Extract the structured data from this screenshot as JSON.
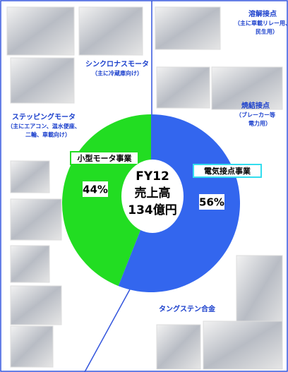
{
  "chart_data": {
    "type": "pie",
    "categories": [
      "電気接点事業",
      "小型モータ事業"
    ],
    "values": [
      56,
      44
    ],
    "value_labels": [
      "56%",
      "44%"
    ],
    "colors": [
      "#3366ee",
      "#22dd22"
    ],
    "center_label": [
      "FY12",
      "売上高",
      "134億円"
    ],
    "products": [
      {
        "name": "シンクロナスモータ",
        "note": [
          "（主に冷蔵庫向け）"
        ]
      },
      {
        "name": "ステッピングモータ",
        "note": [
          "（主にエアコン、温水便座、",
          "二輪、車載向け）"
        ]
      },
      {
        "name": "溶解接点",
        "note": [
          "（主に車載リレー用、",
          "民生用）"
        ]
      },
      {
        "name": "焼結接点",
        "note": [
          "（ブレーカー等",
          "電力用）"
        ]
      },
      {
        "name": "タングステン合金",
        "note": []
      }
    ]
  }
}
